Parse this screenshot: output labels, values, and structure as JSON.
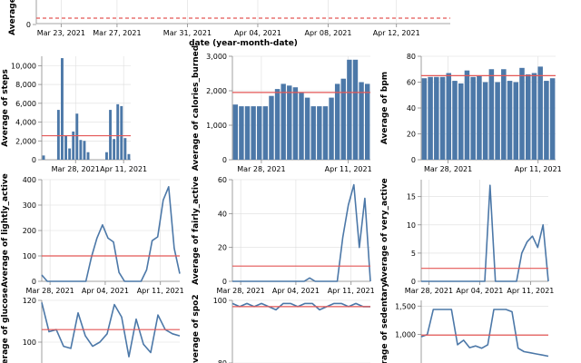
{
  "colors": {
    "bar": "#4c78a8",
    "line": "#4c78a8",
    "mean": "#e45756",
    "grid": "#dddddd",
    "axis": "#888888"
  },
  "chart_data": [
    {
      "id": "c0",
      "type": "line",
      "ylabel": "Average",
      "xlabel": "date (year-month-date)",
      "x_tick_labels": [
        "Mar 23, 2021",
        "Mar 27, 2021",
        "Mar 31, 2021",
        "Apr 04, 2021",
        "Apr 08, 2021",
        "Apr 12, 2021"
      ],
      "y_tick_labels": [
        "0"
      ],
      "mean_line": "dashed"
    },
    {
      "id": "c1",
      "type": "bar",
      "ylabel": "Average of steps",
      "ylim": [
        0,
        11000
      ],
      "y_ticks": [
        0,
        2000,
        4000,
        6000,
        8000,
        10000
      ],
      "y_tick_labels": [
        "0",
        "2,000",
        "4,000",
        "6,000",
        "8,000",
        "10,000"
      ],
      "x_tick_labels": [
        "Mar 28, 2021",
        "Apr 11, 2021"
      ],
      "values": [
        450,
        0,
        0,
        0,
        5300,
        10800,
        2600,
        1200,
        3000,
        4900,
        2100,
        2000,
        800,
        0,
        0,
        0,
        0,
        800,
        5300,
        2200,
        5900,
        5700,
        2300,
        600
      ],
      "mean": 2550
    },
    {
      "id": "c2",
      "type": "bar",
      "ylabel": "Average of calories_burned",
      "ylim": [
        0,
        3000
      ],
      "y_ticks": [
        0,
        1000,
        2000,
        3000
      ],
      "y_tick_labels": [
        "0",
        "1,000",
        "2,000",
        "3,000"
      ],
      "x_tick_labels": [
        "Mar 28, 2021",
        "Apr 11, 2021"
      ],
      "values": [
        1600,
        1550,
        1550,
        1550,
        1550,
        1550,
        1850,
        2050,
        2200,
        2150,
        2100,
        1950,
        1800,
        1550,
        1550,
        1550,
        1800,
        2200,
        2350,
        2900,
        2900,
        2250,
        2200
      ],
      "mean": 1950
    },
    {
      "id": "c3",
      "type": "bar",
      "ylabel": "Average of bpm",
      "ylim": [
        0,
        80
      ],
      "y_ticks": [
        0,
        20,
        40,
        60,
        80
      ],
      "y_tick_labels": [
        "0",
        "20",
        "40",
        "60",
        "80"
      ],
      "x_tick_labels": [
        "Mar 28, 2021",
        "Apr 11, 2021"
      ],
      "values": [
        63,
        64,
        64,
        64,
        67,
        61,
        59,
        69,
        64,
        65,
        60,
        70,
        60,
        70,
        61,
        60,
        71,
        66,
        67,
        72,
        61,
        63
      ],
      "mean": 65
    },
    {
      "id": "c4",
      "type": "line",
      "ylabel": "Average of lightly_active",
      "ylim": [
        0,
        400
      ],
      "y_ticks": [
        0,
        100,
        200,
        300,
        400
      ],
      "y_tick_labels": [
        "0",
        "100",
        "200",
        "300",
        "400"
      ],
      "x_tick_labels": [
        "Mar 28, 2021",
        "Apr 04, 2021",
        "Apr 11, 2021"
      ],
      "values": [
        25,
        0,
        0,
        0,
        0,
        0,
        0,
        0,
        0,
        95,
        170,
        222,
        170,
        155,
        35,
        0,
        0,
        0,
        0,
        45,
        160,
        175,
        320,
        372,
        130,
        30
      ],
      "mean": 100
    },
    {
      "id": "c5",
      "type": "line",
      "ylabel": "Average of fairly_active",
      "ylim": [
        0,
        60
      ],
      "y_ticks": [
        0,
        20,
        40,
        60
      ],
      "y_tick_labels": [
        "0",
        "20",
        "40",
        "60"
      ],
      "x_tick_labels": [
        "Mar 28, 2021",
        "Apr 04, 2021",
        "Apr 11, 2021"
      ],
      "values": [
        0,
        0,
        0,
        0,
        0,
        0,
        0,
        0,
        0,
        0,
        0,
        0,
        0,
        0,
        2,
        0,
        0,
        0,
        0,
        0,
        26,
        45,
        57,
        20,
        49,
        0
      ],
      "mean": 9
    },
    {
      "id": "c6",
      "type": "line",
      "ylabel": "Average of very_active",
      "ylim": [
        0,
        18
      ],
      "y_ticks": [
        0,
        5,
        10,
        15
      ],
      "y_tick_labels": [
        "0",
        "5",
        "10",
        "15"
      ],
      "x_tick_labels": [
        "Mar 28, 2021",
        "Apr 04, 2021",
        "Apr 11, 2021"
      ],
      "values": [
        0,
        0,
        0,
        0,
        0,
        0,
        0,
        0,
        0,
        0,
        0,
        0,
        0,
        17,
        0,
        0,
        0,
        0,
        0,
        5,
        7,
        8,
        6,
        10,
        0
      ],
      "mean": 2.3
    },
    {
      "id": "c7",
      "type": "line",
      "ylabel": "Average of glucose",
      "ylim": [
        90,
        120
      ],
      "y_ticks": [
        100,
        120
      ],
      "y_tick_labels": [
        "100",
        "120"
      ],
      "values": [
        119,
        105,
        106,
        98,
        97,
        114,
        103,
        98,
        100,
        104,
        118,
        112,
        93,
        111,
        99,
        95,
        113,
        106,
        104,
        103
      ],
      "mean": 106
    },
    {
      "id": "c8",
      "type": "line",
      "ylabel": "Average of spo2",
      "ylim": [
        80,
        100
      ],
      "y_ticks": [
        80,
        100
      ],
      "y_tick_labels": [
        "80",
        "100"
      ],
      "values": [
        99,
        98,
        99,
        98,
        99,
        98,
        97,
        99,
        99,
        98,
        99,
        99,
        97,
        98,
        99,
        99,
        98,
        99,
        98,
        98
      ],
      "mean": 98
    },
    {
      "id": "c9",
      "type": "line",
      "ylabel": "Average of sedentary",
      "ylim": [
        500,
        1600
      ],
      "y_ticks": [
        1000,
        1500
      ],
      "y_tick_labels": [
        "1,000",
        "1,500"
      ],
      "values": [
        960,
        1000,
        1440,
        1440,
        1440,
        1440,
        820,
        900,
        770,
        800,
        760,
        820,
        1440,
        1440,
        1440,
        1400,
        760,
        700,
        680,
        660,
        640,
        620
      ],
      "mean": 990
    }
  ]
}
